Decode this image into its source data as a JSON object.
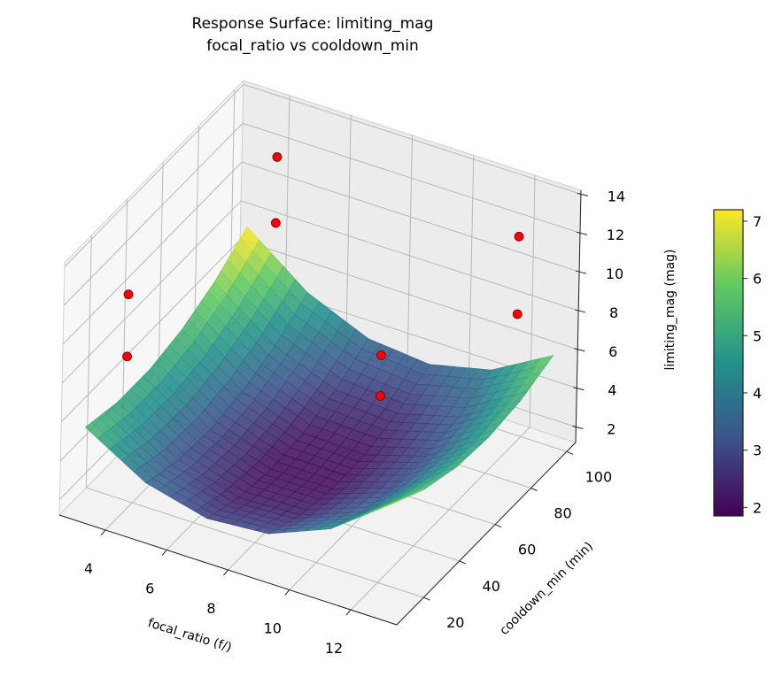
{
  "chart_data": {
    "type": "surface3d",
    "title": "Response Surface: limiting_mag",
    "subtitle": "focal_ratio vs cooldown_min",
    "xlabel": "focal_ratio (f/)",
    "ylabel": "cooldown_min (min)",
    "zlabel": "limiting_mag (mag)",
    "xlim": [
      2.5,
      13.5
    ],
    "ylim": [
      5,
      105
    ],
    "zlim": [
      1.2,
      14.2
    ],
    "xticks": [
      4,
      6,
      8,
      10,
      12
    ],
    "yticks": [
      20,
      40,
      60,
      80,
      100
    ],
    "zticks": [
      2,
      4,
      6,
      8,
      10,
      12,
      14
    ],
    "grid": true,
    "colormap": "viridis",
    "surface": {
      "x": [
        3,
        5,
        7,
        9,
        11,
        13
      ],
      "y": [
        10,
        28,
        46,
        64,
        82,
        100
      ],
      "z": [
        [
          5.51,
          5.11,
          5.1,
          5.48,
          6.24,
          7.4
        ],
        [
          3.67,
          3.16,
          3.04,
          3.32,
          3.97,
          5.02
        ],
        [
          2.87,
          2.25,
          2.03,
          2.19,
          2.74,
          3.68
        ],
        [
          3.11,
          2.39,
          2.05,
          2.11,
          2.54,
          3.38
        ],
        [
          4.39,
          3.56,
          3.12,
          3.06,
          3.39,
          4.12
        ],
        [
          6.71,
          5.77,
          5.22,
          5.06,
          5.28,
          5.9
        ]
      ]
    },
    "scatter": {
      "color": "#ff0000",
      "points": [
        {
          "x": 5,
          "y": 81,
          "z": 10.4
        },
        {
          "x": 5,
          "y": 81,
          "z": 13.8
        },
        {
          "x": 3,
          "y": 33,
          "z": 7.0
        },
        {
          "x": 3,
          "y": 33,
          "z": 10.2
        },
        {
          "x": 11,
          "y": 37,
          "z": 8.7
        },
        {
          "x": 11,
          "y": 37,
          "z": 10.8
        },
        {
          "x": 13,
          "y": 79,
          "z": 10.0
        },
        {
          "x": 13,
          "y": 79,
          "z": 14.0
        }
      ]
    },
    "colorbar": {
      "range": [
        1.85,
        7.2
      ],
      "ticks": [
        2,
        3,
        4,
        5,
        6,
        7
      ],
      "placement": "right"
    }
  }
}
